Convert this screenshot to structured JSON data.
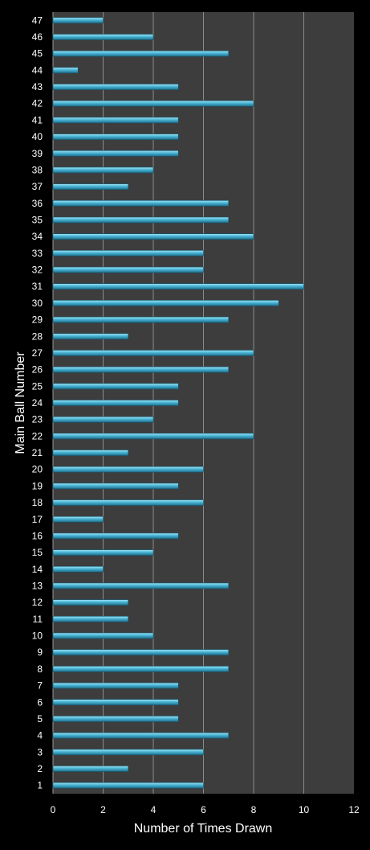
{
  "chart_data": {
    "type": "bar",
    "orientation": "horizontal",
    "title": "",
    "xlabel": "Number of Times Drawn",
    "ylabel": "Main Ball Number",
    "xlim": [
      0,
      12
    ],
    "x_ticks": [
      "0",
      "2",
      "4",
      "6",
      "8",
      "10",
      "12"
    ],
    "grid": "vertical",
    "colors": {
      "background": "#000000",
      "plot_area": "#3d3d3d",
      "grid": "#8a8a8a",
      "bar_light": "#9fe6f7",
      "bar_mid": "#4ab3d3",
      "bar_dark": "#1d6f8c"
    },
    "categories": [
      "1",
      "2",
      "3",
      "4",
      "5",
      "6",
      "7",
      "8",
      "9",
      "10",
      "11",
      "12",
      "13",
      "14",
      "15",
      "16",
      "17",
      "18",
      "19",
      "20",
      "21",
      "22",
      "23",
      "24",
      "25",
      "26",
      "27",
      "28",
      "29",
      "30",
      "31",
      "32",
      "33",
      "34",
      "35",
      "36",
      "37",
      "38",
      "39",
      "40",
      "41",
      "42",
      "43",
      "44",
      "45",
      "46",
      "47"
    ],
    "values": [
      6,
      3,
      6,
      7,
      5,
      5,
      5,
      7,
      7,
      4,
      3,
      3,
      7,
      2,
      4,
      5,
      2,
      6,
      5,
      6,
      3,
      8,
      4,
      5,
      5,
      7,
      8,
      3,
      7,
      9,
      10,
      6,
      6,
      8,
      7,
      7,
      3,
      4,
      5,
      5,
      5,
      8,
      5,
      1,
      7,
      4,
      2
    ]
  }
}
